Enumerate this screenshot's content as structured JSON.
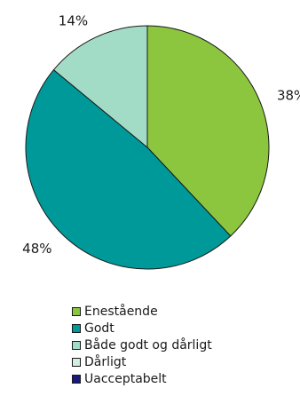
{
  "chart_data": {
    "type": "pie",
    "categories": [
      "Enestående",
      "Godt",
      "Både godt og dårligt",
      "Dårligt",
      "Uacceptabelt"
    ],
    "values": [
      38,
      48,
      14,
      0,
      0
    ],
    "value_labels": [
      "38%",
      "48%",
      "14%",
      "",
      ""
    ],
    "colors": [
      "#8cc63f",
      "#009999",
      "#a3dcc6",
      "#d3efe2",
      "#1a1a7a"
    ],
    "legend_position": "bottom",
    "title": ""
  }
}
